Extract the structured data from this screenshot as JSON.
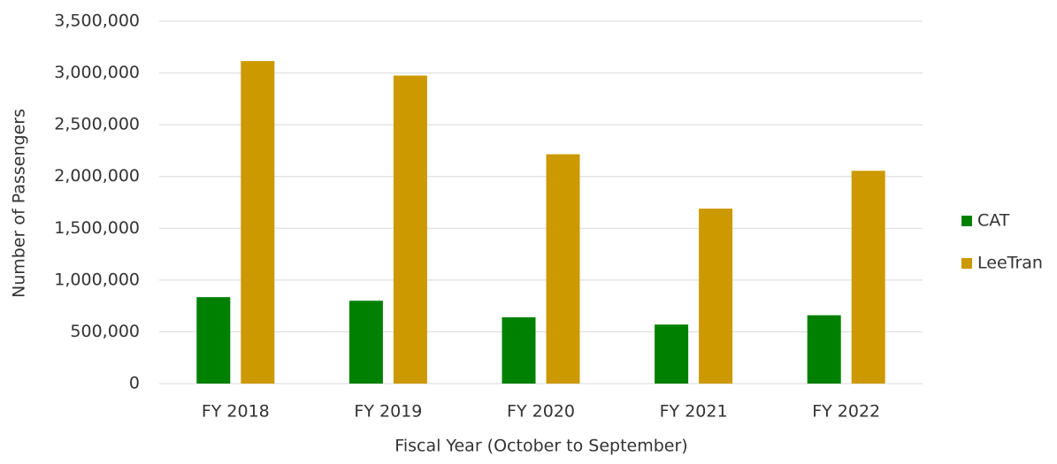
{
  "chart_data": {
    "type": "bar",
    "x_label": "Fiscal Year (October to September)",
    "y_label": "Number of Passengers",
    "categories": [
      "FY 2018",
      "FY 2019",
      "FY 2020",
      "FY 2021",
      "FY 2022"
    ],
    "series": [
      {
        "name": "CAT",
        "color": "#008000",
        "values": [
          835000,
          800000,
          640000,
          570000,
          660000
        ]
      },
      {
        "name": "LeeTran",
        "color": "#cc9900",
        "values": [
          3115000,
          2975000,
          2215000,
          1690000,
          2055000
        ]
      }
    ],
    "ylim": [
      0,
      3500000
    ],
    "yticks": [
      0,
      {
        "value": 500000,
        "label": "500,000"
      },
      {
        "value": 1000000,
        "label": "1,000,000"
      },
      {
        "value": 1500000,
        "label": "1,500,000"
      },
      {
        "value": 2000000,
        "label": "2,000,000"
      },
      {
        "value": 2500000,
        "label": "2,500,000"
      },
      {
        "value": 3000000,
        "label": "3,000,000"
      },
      {
        "value": 3500000,
        "label": "3,500,000"
      }
    ],
    "grid": true,
    "legend": "right"
  }
}
